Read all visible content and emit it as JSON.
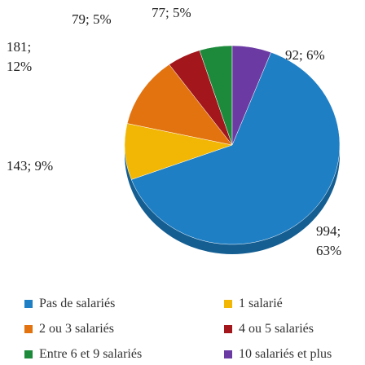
{
  "chart_data": {
    "type": "pie",
    "categories": [
      "Pas de salariés",
      "1 salarié",
      "2 ou 3 salariés",
      "4 ou 5 salariés",
      "Entre 6 et 9 salariés",
      "10 salariés et plus"
    ],
    "values": [
      994,
      143,
      181,
      79,
      77,
      92
    ],
    "value_labels": [
      "994; 63%",
      "143; 9%",
      "181; 12%",
      "79; 5%",
      "77; 5%",
      "92; 6%"
    ],
    "colors": [
      "#1f7fc4",
      "#f2b705",
      "#e2730f",
      "#a3161b",
      "#1d8a3b",
      "#6b3aa3"
    ]
  }
}
